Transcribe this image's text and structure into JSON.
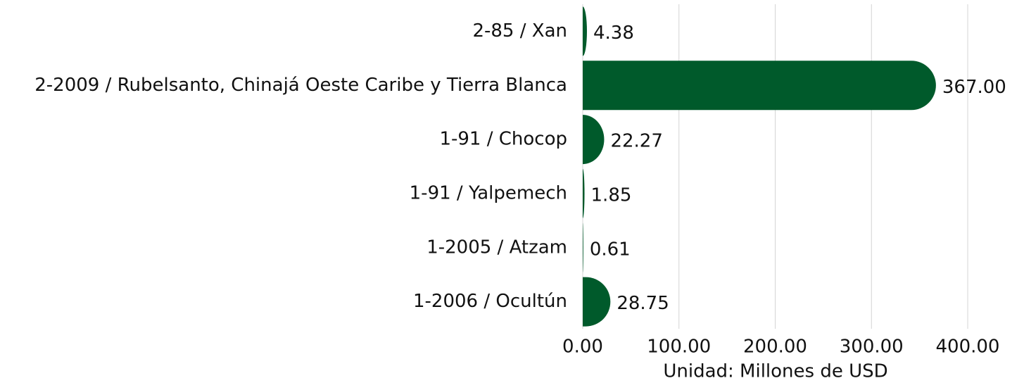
{
  "chart_data": {
    "type": "bar",
    "orientation": "horizontal",
    "categories": [
      "2-85 / Xan",
      "2-2009 / Rubelsanto, Chinajá Oeste Caribe y Tierra Blanca",
      "1-91 / Chocop",
      "1-91 / Yalpemech",
      "1-2005 / Atzam",
      "1-2006 / Ocultún"
    ],
    "values": [
      4.38,
      367.0,
      22.27,
      1.85,
      0.61,
      28.75
    ],
    "value_labels": [
      "4.38",
      "367.00",
      "22.27",
      "1.85",
      "0.61",
      "28.75"
    ],
    "color": "#005a2b",
    "xlim": [
      0,
      400
    ],
    "xticks": [
      {
        "value": 0,
        "label": "0.00"
      },
      {
        "value": 100,
        "label": "100.00"
      },
      {
        "value": 200,
        "label": "200.00"
      },
      {
        "value": 300,
        "label": "300.00"
      },
      {
        "value": 400,
        "label": "400.00"
      }
    ],
    "x_label": "Unidad: Millones de USD",
    "grid": true
  }
}
